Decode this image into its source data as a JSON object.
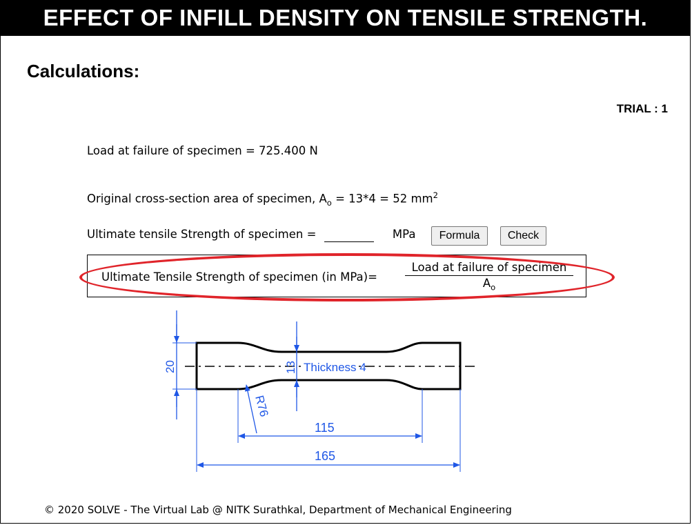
{
  "header": {
    "title": "EFFECT OF INFILL DENSITY ON TENSILE STRENGTH."
  },
  "section": {
    "heading": "Calculations:"
  },
  "trial": {
    "label": "TRIAL : 1"
  },
  "calc": {
    "load_text": "Load at failure of specimen = 725.400 N",
    "area_prefix": "Original cross-section area of specimen, A",
    "area_sub": "o",
    "area_value": " = 13*4 = 52 mm",
    "area_sup": "2",
    "uts_label": "Ultimate tensile Strength of specimen =",
    "uts_value": "",
    "unit": "MPa",
    "formula_button": "Formula",
    "check_button": "Check"
  },
  "formula": {
    "lhs": "Ultimate Tensile Strength of specimen (in MPa)=",
    "numerator": "Load at failure of specimen",
    "denominator": "A",
    "denominator_sub": "o"
  },
  "diagram": {
    "dim_height": "20",
    "dim_neck": "13",
    "thickness": "Thickness 4",
    "radius": "R76",
    "gauge_length": "115",
    "total_length": "165"
  },
  "colors": {
    "dimension": "#1f57e6",
    "highlight": "#e0242a"
  },
  "footer": {
    "text": "© 2020 SOLVE - The Virtual Lab @ NITK Surathkal, Department of Mechanical Engineering"
  }
}
